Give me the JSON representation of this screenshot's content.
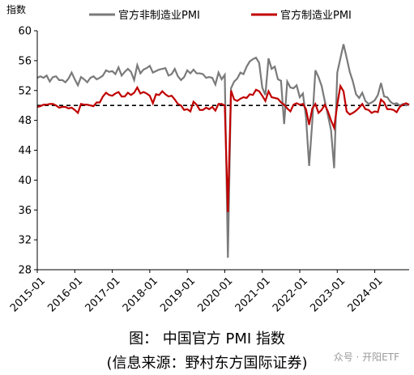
{
  "chart_data": {
    "type": "line",
    "ylabel": "指数",
    "ylim": [
      28,
      60
    ],
    "yticks": [
      28,
      32,
      36,
      40,
      44,
      48,
      52,
      56,
      60
    ],
    "x_start": "2015-01",
    "x_end": "2024-12",
    "xticks": [
      "2015-01",
      "2016-01",
      "2017-01",
      "2018-01",
      "2019-01",
      "2020-01",
      "2021-01",
      "2022-01",
      "2023-01",
      "2024-01"
    ],
    "reference_line": 50,
    "legend_position": "top",
    "series": [
      {
        "name": "官方非制造业PMI",
        "color": "#7a7a7a",
        "values": [
          53.7,
          53.9,
          53.7,
          54.0,
          53.2,
          53.8,
          53.9,
          53.4,
          53.4,
          53.1,
          53.6,
          54.4,
          53.5,
          52.7,
          53.8,
          53.5,
          53.1,
          53.7,
          53.9,
          53.5,
          53.7,
          54.0,
          54.7,
          54.5,
          54.6,
          54.2,
          55.1,
          54.0,
          54.5,
          54.9,
          54.5,
          53.4,
          55.4,
          54.3,
          54.8,
          55.0,
          55.3,
          54.4,
          54.6,
          54.8,
          54.9,
          55.0,
          54.0,
          54.2,
          54.9,
          53.9,
          53.4,
          53.8,
          54.7,
          54.3,
          54.8,
          54.3,
          54.3,
          54.2,
          53.7,
          53.8,
          53.7,
          52.8,
          54.4,
          53.5,
          54.1,
          29.6,
          52.3,
          53.2,
          53.6,
          54.4,
          54.2,
          55.2,
          55.9,
          56.2,
          56.4,
          55.7,
          52.4,
          51.4,
          56.3,
          54.9,
          55.2,
          53.5,
          53.3,
          47.5,
          53.2,
          52.4,
          52.3,
          52.7,
          51.1,
          51.6,
          48.4,
          41.9,
          47.8,
          54.7,
          53.8,
          52.6,
          50.6,
          48.7,
          46.7,
          41.6,
          54.4,
          56.3,
          58.2,
          56.4,
          54.5,
          53.2,
          51.5,
          51.0,
          51.7,
          50.6,
          50.2,
          50.4,
          50.7,
          51.4,
          53.0,
          51.2,
          51.1,
          50.5,
          50.2,
          50.3,
          50.0,
          50.2,
          50.0,
          50.1
        ]
      },
      {
        "name": "官方制造业PMI",
        "color": "#c00000",
        "values": [
          49.8,
          49.9,
          50.1,
          50.1,
          50.2,
          50.2,
          50.0,
          49.7,
          49.8,
          49.8,
          49.6,
          49.7,
          49.4,
          49.0,
          50.2,
          50.1,
          50.1,
          50.0,
          49.9,
          50.4,
          50.4,
          51.2,
          51.7,
          51.4,
          51.3,
          51.6,
          51.8,
          51.2,
          51.2,
          51.7,
          51.4,
          51.7,
          52.4,
          51.6,
          51.8,
          51.6,
          51.3,
          50.3,
          51.5,
          51.4,
          51.9,
          51.5,
          51.2,
          51.3,
          50.8,
          50.2,
          50.0,
          49.4,
          49.5,
          49.2,
          50.5,
          50.1,
          49.4,
          49.4,
          49.7,
          49.5,
          49.8,
          49.3,
          50.2,
          50.2,
          50.0,
          35.7,
          52.0,
          50.8,
          50.6,
          50.9,
          51.1,
          51.0,
          51.5,
          51.4,
          52.1,
          51.9,
          51.3,
          50.6,
          51.9,
          51.1,
          51.0,
          50.9,
          50.4,
          50.1,
          49.6,
          49.2,
          50.1,
          50.3,
          50.1,
          50.2,
          49.5,
          47.4,
          49.6,
          50.2,
          49.0,
          49.4,
          50.1,
          49.2,
          48.0,
          47.0,
          50.1,
          52.6,
          51.9,
          49.2,
          48.8,
          49.0,
          49.3,
          49.7,
          50.2,
          49.5,
          49.4,
          49.0,
          49.2,
          49.1,
          50.8,
          50.4,
          49.5,
          49.5,
          49.4,
          49.1,
          49.8,
          50.1,
          50.3,
          50.1
        ]
      }
    ]
  },
  "caption": {
    "line1": "图：  中国官方 PMI 指数",
    "line2": "(信息来源：野村东方国际证券)"
  },
  "watermark": "众号 · 开阳ETF"
}
